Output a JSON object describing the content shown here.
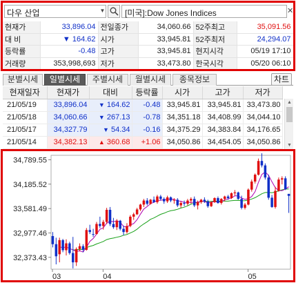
{
  "symbol": {
    "name": "다우 산업",
    "description": "[미국]:Dow Jones Indices",
    "dropdown_icon": "chevron-down-icon",
    "search_icon": "search-icon",
    "close_icon": "close-icon"
  },
  "quote": {
    "rows": [
      [
        {
          "label": "현재가"
        },
        {
          "value": "33,896.04",
          "color": "#1030c8"
        },
        {
          "label": "전일종가"
        },
        {
          "value": "34,060.66"
        },
        {
          "label": "52주최고"
        },
        {
          "value": "35,091.56",
          "color": "#e01010"
        }
      ],
      [
        {
          "label": "대  비"
        },
        {
          "value": "▼    164.62",
          "color": "#1030c8"
        },
        {
          "label": "시가"
        },
        {
          "value": "33,945.81"
        },
        {
          "label": "52주최저"
        },
        {
          "value": "24,294.07",
          "color": "#1030c8"
        }
      ],
      [
        {
          "label": "등락률"
        },
        {
          "value": "-0.48",
          "color": "#1030c8"
        },
        {
          "label": "고가"
        },
        {
          "value": "33,945.81"
        },
        {
          "label": "현지시각"
        },
        {
          "value": "05/19 17:10"
        }
      ],
      [
        {
          "label": "거래량"
        },
        {
          "value": "353,998,693"
        },
        {
          "label": "저가"
        },
        {
          "value": "33,473.80"
        },
        {
          "label": "한국시각"
        },
        {
          "value": "05/20 06:10"
        }
      ]
    ]
  },
  "tabs": [
    "분별시세",
    "일별시세",
    "주별시세",
    "월별시세",
    "종목정보"
  ],
  "active_tab": 1,
  "chart_button": "차트",
  "daily": {
    "headers": [
      "현재일자",
      "현재가",
      "대비",
      "등락률",
      "시가",
      "고가",
      "저가"
    ],
    "rows": [
      {
        "date": "21/05/19",
        "close": "33,896.04",
        "dir": "down",
        "change": "164.62",
        "rate": "-0.48",
        "open": "33,945.81",
        "high": "33,945.81",
        "low": "33,473.80"
      },
      {
        "date": "21/05/18",
        "close": "34,060.66",
        "dir": "down",
        "change": "267.13",
        "rate": "-0.78",
        "open": "34,351.18",
        "high": "34,408.99",
        "low": "34,044.10"
      },
      {
        "date": "21/05/17",
        "close": "34,327.79",
        "dir": "down",
        "change": "54.34",
        "rate": "-0.16",
        "open": "34,375.29",
        "high": "34,383.84",
        "low": "34,176.65"
      },
      {
        "date": "21/05/14",
        "close": "34,382.13",
        "dir": "up",
        "change": "360.68",
        "rate": "+1.06",
        "open": "34,050.86",
        "high": "34,454.05",
        "low": "34,050.86"
      }
    ],
    "colors": {
      "up": "#e01010",
      "down": "#1030c8"
    }
  },
  "chart_data": {
    "type": "candlestick",
    "yticks": [
      "34,789.55",
      "34,185.52",
      "33,581.49",
      "32,977.46",
      "32,373.43"
    ],
    "ytick_values": [
      34789.55,
      34185.52,
      33581.49,
      32977.46,
      32373.43
    ],
    "xticks": [
      {
        "label": "03",
        "index": 0
      },
      {
        "label": "04",
        "index": 15
      },
      {
        "label": "05",
        "index": 58
      }
    ],
    "ylim": [
      32000,
      35000
    ],
    "colors": {
      "up": "#e01010",
      "down": "#1030c8",
      "ma5": "#b000b0",
      "ma20": "#18a018"
    },
    "candles": [
      {
        "o": 32900,
        "h": 33000,
        "l": 32620,
        "c": 32700
      },
      {
        "o": 32700,
        "h": 32860,
        "l": 32200,
        "c": 32400
      },
      {
        "o": 32450,
        "h": 32860,
        "l": 32250,
        "c": 32800
      },
      {
        "o": 32800,
        "h": 32830,
        "l": 32500,
        "c": 32550
      },
      {
        "o": 32550,
        "h": 32820,
        "l": 32420,
        "c": 32720
      },
      {
        "o": 32720,
        "h": 32760,
        "l": 32440,
        "c": 32480
      },
      {
        "o": 32480,
        "h": 32880,
        "l": 32100,
        "c": 32250
      },
      {
        "o": 32250,
        "h": 32620,
        "l": 32160,
        "c": 32580
      },
      {
        "o": 32580,
        "h": 32720,
        "l": 32520,
        "c": 32650
      },
      {
        "o": 32650,
        "h": 32700,
        "l": 32500,
        "c": 32560
      },
      {
        "o": 32560,
        "h": 33100,
        "l": 32540,
        "c": 33050
      },
      {
        "o": 33050,
        "h": 33180,
        "l": 32950,
        "c": 33000
      },
      {
        "o": 32950,
        "h": 33080,
        "l": 32880,
        "c": 32940
      },
      {
        "o": 32950,
        "h": 33250,
        "l": 32940,
        "c": 33200
      },
      {
        "o": 33200,
        "h": 33380,
        "l": 33100,
        "c": 33150
      },
      {
        "o": 33150,
        "h": 33300,
        "l": 33060,
        "c": 33250
      },
      {
        "o": 33250,
        "h": 33600,
        "l": 33200,
        "c": 33550
      },
      {
        "o": 33550,
        "h": 33620,
        "l": 33150,
        "c": 33200
      },
      {
        "o": 33200,
        "h": 33350,
        "l": 33080,
        "c": 33120
      },
      {
        "o": 33120,
        "h": 33320,
        "l": 33050,
        "c": 33280
      },
      {
        "o": 33280,
        "h": 33300,
        "l": 33040,
        "c": 33080
      },
      {
        "o": 33080,
        "h": 33160,
        "l": 32920,
        "c": 33000
      },
      {
        "o": 33000,
        "h": 33220,
        "l": 32960,
        "c": 33150
      },
      {
        "o": 33150,
        "h": 33420,
        "l": 33120,
        "c": 33380
      },
      {
        "o": 33380,
        "h": 33480,
        "l": 33300,
        "c": 33440
      },
      {
        "o": 33440,
        "h": 33600,
        "l": 33420,
        "c": 33560
      },
      {
        "o": 33560,
        "h": 33700,
        "l": 33520,
        "c": 33680
      },
      {
        "o": 33680,
        "h": 33820,
        "l": 33620,
        "c": 33780
      },
      {
        "o": 33780,
        "h": 33840,
        "l": 33660,
        "c": 33700
      },
      {
        "o": 33700,
        "h": 33820,
        "l": 33680,
        "c": 33800
      },
      {
        "o": 33800,
        "h": 33880,
        "l": 33720,
        "c": 33740
      },
      {
        "o": 33740,
        "h": 33920,
        "l": 33700,
        "c": 33880
      },
      {
        "o": 33880,
        "h": 33920,
        "l": 33780,
        "c": 33820
      },
      {
        "o": 33820,
        "h": 33860,
        "l": 33700,
        "c": 33760
      },
      {
        "o": 33760,
        "h": 33900,
        "l": 33720,
        "c": 33860
      },
      {
        "o": 33860,
        "h": 33880,
        "l": 33740,
        "c": 33780
      },
      {
        "o": 33780,
        "h": 33840,
        "l": 33700,
        "c": 33800
      },
      {
        "o": 33800,
        "h": 33840,
        "l": 33620,
        "c": 33660
      },
      {
        "o": 33660,
        "h": 33760,
        "l": 33600,
        "c": 33720
      },
      {
        "o": 33720,
        "h": 33780,
        "l": 33640,
        "c": 33700
      },
      {
        "o": 33700,
        "h": 33820,
        "l": 33660,
        "c": 33780
      },
      {
        "o": 33780,
        "h": 33860,
        "l": 33700,
        "c": 33820
      },
      {
        "o": 33820,
        "h": 33880,
        "l": 33620,
        "c": 33660
      },
      {
        "o": 33660,
        "h": 33780,
        "l": 33560,
        "c": 33740
      },
      {
        "o": 33740,
        "h": 33820,
        "l": 33700,
        "c": 33800
      },
      {
        "o": 33800,
        "h": 33860,
        "l": 33720,
        "c": 33760
      },
      {
        "o": 33760,
        "h": 33800,
        "l": 33600,
        "c": 33640
      },
      {
        "o": 33640,
        "h": 33760,
        "l": 33620,
        "c": 33740
      },
      {
        "o": 33740,
        "h": 33860,
        "l": 33720,
        "c": 33840
      },
      {
        "o": 33840,
        "h": 33880,
        "l": 33700,
        "c": 33720
      },
      {
        "o": 33720,
        "h": 33840,
        "l": 33680,
        "c": 33820
      },
      {
        "o": 33820,
        "h": 33900,
        "l": 33760,
        "c": 33880
      },
      {
        "o": 33880,
        "h": 33920,
        "l": 33800,
        "c": 33840
      },
      {
        "o": 33840,
        "h": 33980,
        "l": 33820,
        "c": 33960
      },
      {
        "o": 33960,
        "h": 34040,
        "l": 33900,
        "c": 33980
      },
      {
        "o": 33980,
        "h": 34000,
        "l": 33800,
        "c": 33820
      },
      {
        "o": 33820,
        "h": 33900,
        "l": 33560,
        "c": 33600
      },
      {
        "o": 33600,
        "h": 33720,
        "l": 33560,
        "c": 33680
      },
      {
        "o": 33680,
        "h": 34080,
        "l": 33660,
        "c": 34050
      },
      {
        "o": 34050,
        "h": 34300,
        "l": 34000,
        "c": 34250
      },
      {
        "o": 34250,
        "h": 34450,
        "l": 34200,
        "c": 34420
      },
      {
        "o": 34420,
        "h": 34820,
        "l": 34400,
        "c": 34760
      },
      {
        "o": 34760,
        "h": 34950,
        "l": 34600,
        "c": 34650
      },
      {
        "o": 34650,
        "h": 34700,
        "l": 34300,
        "c": 34350
      },
      {
        "o": 34350,
        "h": 34420,
        "l": 33800,
        "c": 33850
      },
      {
        "o": 33850,
        "h": 33920,
        "l": 33600,
        "c": 33620
      },
      {
        "o": 33620,
        "h": 34120,
        "l": 33580,
        "c": 34020
      },
      {
        "o": 34020,
        "h": 34350,
        "l": 34000,
        "c": 34300
      },
      {
        "o": 34300,
        "h": 34380,
        "l": 34180,
        "c": 34330
      },
      {
        "o": 34330,
        "h": 34380,
        "l": 34040,
        "c": 34060
      },
      {
        "o": 33945,
        "h": 33945,
        "l": 33474,
        "c": 33896
      }
    ]
  }
}
